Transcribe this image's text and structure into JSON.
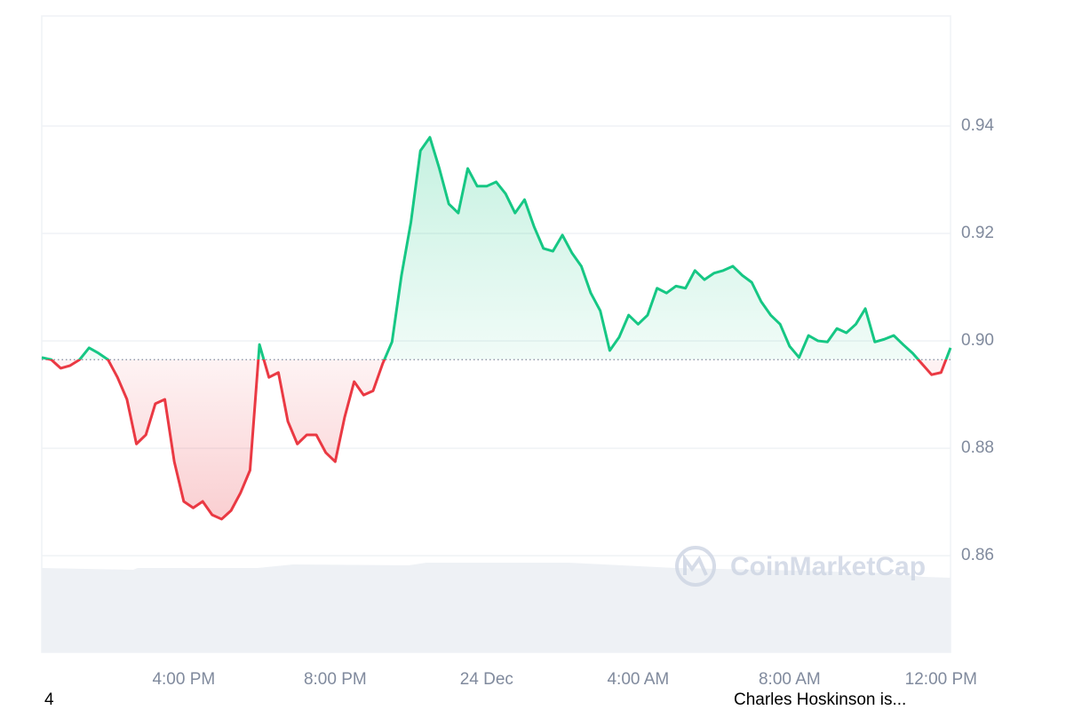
{
  "chart_data": {
    "type": "line",
    "categories": [
      null,
      null,
      null,
      null,
      null,
      null,
      null,
      null,
      null,
      null,
      null,
      null,
      null,
      null,
      null,
      "4:00 PM",
      null,
      null,
      null,
      null,
      null,
      null,
      null,
      null,
      null,
      null,
      null,
      null,
      null,
      null,
      null,
      "8:00 PM",
      null,
      null,
      null,
      null,
      null,
      null,
      null,
      null,
      null,
      null,
      null,
      null,
      null,
      null,
      null,
      "24 Dec",
      null,
      null,
      null,
      null,
      null,
      null,
      null,
      null,
      null,
      null,
      null,
      null,
      null,
      null,
      null,
      "4:00 AM",
      null,
      null,
      null,
      null,
      null,
      null,
      null,
      null,
      null,
      null,
      null,
      null,
      null,
      null,
      null,
      "8:00 AM",
      null,
      null,
      null,
      null,
      null,
      null,
      null,
      null,
      null,
      null,
      null,
      null,
      null,
      null,
      null,
      "12:00 PM",
      null
    ],
    "values": [
      0.8969,
      0.8965,
      0.8949,
      0.8954,
      0.8965,
      0.8987,
      0.8977,
      0.8965,
      0.8932,
      0.8891,
      0.8808,
      0.8825,
      0.8883,
      0.8891,
      0.8775,
      0.8701,
      0.8689,
      0.8701,
      0.8676,
      0.8668,
      0.8684,
      0.8717,
      0.8759,
      0.8993,
      0.8932,
      0.8941,
      0.885,
      0.8808,
      0.8825,
      0.8825,
      0.8792,
      0.8775,
      0.8858,
      0.8924,
      0.8899,
      0.8907,
      0.8957,
      0.8998,
      0.9122,
      0.9221,
      0.9354,
      0.9379,
      0.9321,
      0.9255,
      0.9238,
      0.9321,
      0.9288,
      0.9288,
      0.9296,
      0.9274,
      0.9238,
      0.9263,
      0.9213,
      0.9172,
      0.9167,
      0.9197,
      0.9164,
      0.9139,
      0.9089,
      0.9056,
      0.8982,
      0.9007,
      0.9048,
      0.9031,
      0.9048,
      0.9098,
      0.9089,
      0.9102,
      0.9098,
      0.9131,
      0.9114,
      0.9126,
      0.9131,
      0.9139,
      0.9122,
      0.9109,
      0.9073,
      0.9048,
      0.9031,
      0.899,
      0.8969,
      0.901,
      0.9,
      0.8998,
      0.9023,
      0.9015,
      0.9031,
      0.906,
      0.8998,
      0.9003,
      0.901,
      0.8993,
      0.8977,
      0.8957,
      0.8937,
      0.8941,
      0.8987
    ],
    "baseline": 0.8965,
    "colors": {
      "above": "#16c784",
      "below": "#ea3943"
    },
    "ylim": [
      0.842,
      0.9605
    ],
    "yticks": [
      0.86,
      0.88,
      {
        "value": 0.9,
        "label": "0.90"
      },
      0.92,
      0.94
    ],
    "grid": true,
    "watermark": "CoinMarketCap"
  },
  "footer": {
    "left": "4",
    "right": "Charles Hoskinson is..."
  }
}
